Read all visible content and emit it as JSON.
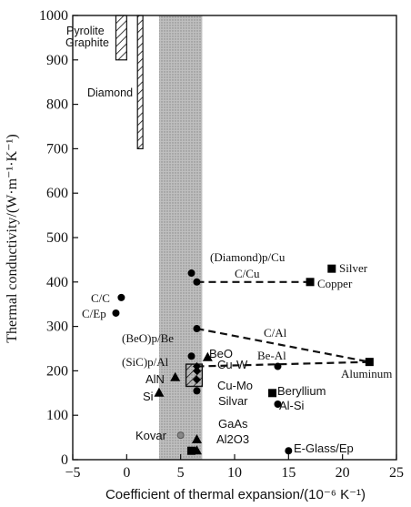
{
  "chart_data": {
    "type": "scatter",
    "xlabel": "Coefficient of thermal expansion/(10⁻⁶ K⁻¹)",
    "ylabel": "Thermal conductivity/(W·m⁻¹·K⁻¹)",
    "xlim": [
      -5,
      25
    ],
    "ylim": [
      0,
      1000
    ],
    "xticks": [
      -5,
      0,
      5,
      10,
      15,
      20,
      25
    ],
    "yticks": [
      0,
      100,
      200,
      300,
      400,
      500,
      600,
      700,
      800,
      900,
      1000
    ],
    "grid": false,
    "shaded_band_x": [
      3,
      7
    ],
    "hatched_bars": [
      {
        "label": "Pyrolite Graphite",
        "x": [
          -1,
          0
        ],
        "y": [
          900,
          1000
        ]
      },
      {
        "label": "Diamond",
        "x": [
          1,
          1.5
        ],
        "y": [
          700,
          1000
        ]
      }
    ],
    "points": [
      {
        "label": "(Diamond)p/Cu",
        "x": 6,
        "y": 420,
        "marker": "circle"
      },
      {
        "label": "C/Cu",
        "x": 6.5,
        "y": 400,
        "marker": "circle"
      },
      {
        "label": "Silver",
        "x": 19,
        "y": 430,
        "marker": "square"
      },
      {
        "label": "Copper",
        "x": 17,
        "y": 400,
        "marker": "square"
      },
      {
        "label": "C/C",
        "x": -0.5,
        "y": 365,
        "marker": "circle"
      },
      {
        "label": "C/Ep",
        "x": -1,
        "y": 330,
        "marker": "circle"
      },
      {
        "label": "C/Al",
        "x": 6.5,
        "y": 295,
        "marker": "circle"
      },
      {
        "label": "Aluminum",
        "x": 22.5,
        "y": 220,
        "marker": "square"
      },
      {
        "label": "Be-Al",
        "x": 14,
        "y": 210,
        "marker": "circle"
      },
      {
        "label": "(BeO)p/Be",
        "x": 6,
        "y": 233,
        "marker": "circle"
      },
      {
        "label": "BeO",
        "x": 7.5,
        "y": 230,
        "marker": "triangle"
      },
      {
        "label": "(SiC)p/Al",
        "x": 6.5,
        "y": 210,
        "marker": "diamond"
      },
      {
        "label": "Cu-W",
        "x": 6.5,
        "y": 200,
        "marker": "diamond"
      },
      {
        "label": "Cu-Mo",
        "x": 6.5,
        "y": 180,
        "marker": "diamond"
      },
      {
        "label": "AlN",
        "x": 4.5,
        "y": 185,
        "marker": "triangle"
      },
      {
        "label": "Si",
        "x": 3,
        "y": 150,
        "marker": "triangle"
      },
      {
        "label": "Silvar",
        "x": 6.5,
        "y": 155,
        "marker": "circle"
      },
      {
        "label": "Beryllium",
        "x": 13.5,
        "y": 150,
        "marker": "square"
      },
      {
        "label": "Al-Si",
        "x": 14,
        "y": 125,
        "marker": "circle"
      },
      {
        "label": "GaAs",
        "x": 6.5,
        "y": 45,
        "marker": "triangle"
      },
      {
        "label": "Kovar",
        "x": 5,
        "y": 55,
        "marker": "circle-gray"
      },
      {
        "label": "Al2O3",
        "x": 6.5,
        "y": 20,
        "marker": "triangle"
      },
      {
        "label": "",
        "x": 6,
        "y": 20,
        "marker": "square"
      },
      {
        "label": "E-Glass/Ep",
        "x": 15,
        "y": 20,
        "marker": "circle"
      }
    ],
    "dashed_links": [
      {
        "from": [
          6.5,
          400
        ],
        "to": [
          17,
          400
        ]
      },
      {
        "from": [
          6.5,
          295
        ],
        "to": [
          22.5,
          220
        ]
      },
      {
        "from": [
          6.5,
          210
        ],
        "to": [
          22.5,
          220
        ]
      }
    ],
    "hatched_box": {
      "x": [
        5.5,
        7
      ],
      "y": [
        165,
        215
      ]
    },
    "text_labels": {
      "pyrolite": "Pyrolite",
      "graphite": "Graphite",
      "diamond": "Diamond",
      "diamondcu": "(Diamond)p/Cu",
      "ccu": "C/Cu",
      "silver": "Silver",
      "copper": "Copper",
      "cc": "C/C",
      "cep": "C/Ep",
      "cal": "C/Al",
      "beal": "Be-Al",
      "aluminum": "Aluminum",
      "beobe": "(BeO)p/Be",
      "beo": "BeO",
      "sical": "(SiC)p/Al",
      "cuw": "Cu-W",
      "cumo": "Cu-Mo",
      "aln": "AlN",
      "si": "Si",
      "silvar": "Silvar",
      "beryllium": "Beryllium",
      "alsi": "Al-Si",
      "gaas": "GaAs",
      "kovar": "Kovar",
      "al2o3": "Al2O3",
      "eglass": "E-Glass/Ep"
    }
  }
}
